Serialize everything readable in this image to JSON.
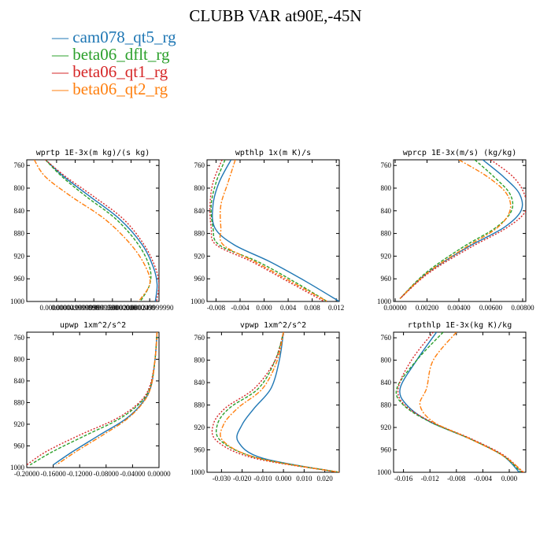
{
  "title": "CLUBB VAR at90E,-45N",
  "legend": [
    {
      "name": "cam078_qt5_rg",
      "color": "#1f77b4"
    },
    {
      "name": "beta06_dflt_rg",
      "color": "#2ca02c"
    },
    {
      "name": "beta06_qt1_rg",
      "color": "#d62728"
    },
    {
      "name": "beta06_qt2_rg",
      "color": "#ff7f0e"
    }
  ],
  "chart_data": [
    {
      "type": "line",
      "title": "wprtp  1E-3x(m kg)/(s kg)",
      "xlim": [
        -8e-05,
        0.000275
      ],
      "ylim": [
        1000,
        750
      ],
      "xticks": [
        0.0,
        5e-05,
        0.0001,
        0.00015,
        0.0002,
        0.00025
      ],
      "xtick_labels": [
        "0.00000000",
        "0.000049999990",
        "0.000099999990",
        "0.000150000000",
        "0.000200000000",
        "0.000249999990"
      ],
      "yticks": [
        760,
        800,
        840,
        880,
        920,
        960,
        1000
      ],
      "ytick_labels": [
        "760",
        "800",
        "840",
        "880",
        "920",
        "960",
        "1000"
      ],
      "series": [
        {
          "name": "cam078_qt5_rg",
          "x": [
            -3e-05,
            2e-05,
            9e-05,
            0.00017,
            0.00023,
            0.00026,
            0.00027,
            0.000265
          ],
          "y": [
            750,
            780,
            815,
            855,
            900,
            940,
            970,
            1000
          ]
        },
        {
          "name": "beta06_dflt_rg",
          "x": [
            -3e-05,
            1.5e-05,
            8e-05,
            0.00016,
            0.00022,
            0.00025,
            0.00025,
            0.000225
          ],
          "y": [
            750,
            780,
            815,
            855,
            900,
            940,
            970,
            1000
          ]
        },
        {
          "name": "beta06_qt1_rg",
          "x": [
            -3e-05,
            2.5e-05,
            0.0001,
            0.00018,
            0.000235,
            0.000265,
            0.000275,
            0.000268
          ],
          "y": [
            750,
            780,
            815,
            855,
            900,
            940,
            970,
            1000
          ]
        },
        {
          "name": "beta06_qt2_rg",
          "x": [
            -6e-05,
            -3e-05,
            4e-05,
            0.00013,
            0.0002,
            0.00024,
            0.00025,
            0.00022
          ],
          "y": [
            750,
            780,
            815,
            855,
            900,
            940,
            970,
            1000
          ]
        }
      ]
    },
    {
      "type": "line",
      "title": "wpthlp  1x(m K)/s",
      "xlim": [
        -0.0095,
        0.0125
      ],
      "ylim": [
        1000,
        750
      ],
      "xticks": [
        -0.008,
        -0.004,
        0.0,
        0.004,
        0.008,
        0.012
      ],
      "xtick_labels": [
        "-0.008",
        "-0.004",
        "0.000",
        "0.004",
        "0.008",
        "0.012"
      ],
      "yticks": [
        760,
        800,
        840,
        880,
        920,
        960,
        1000
      ],
      "ytick_labels": [
        "760",
        "800",
        "840",
        "880",
        "920",
        "960",
        "1000"
      ],
      "series": [
        {
          "name": "cam078_qt5_rg",
          "x": [
            -0.0055,
            -0.0075,
            -0.0085,
            -0.0082,
            -0.005,
            0.001,
            0.007,
            0.0125
          ],
          "y": [
            750,
            790,
            830,
            870,
            900,
            930,
            965,
            1000
          ]
        },
        {
          "name": "beta06_dflt_rg",
          "x": [
            -0.0065,
            -0.008,
            -0.0088,
            -0.0085,
            -0.0075,
            -0.001,
            0.005,
            0.0105
          ],
          "y": [
            750,
            790,
            830,
            870,
            900,
            930,
            965,
            1000
          ]
        },
        {
          "name": "beta06_qt1_rg",
          "x": [
            -0.007,
            -0.0085,
            -0.009,
            -0.0088,
            -0.008,
            -0.002,
            0.004,
            0.01
          ],
          "y": [
            750,
            790,
            830,
            870,
            900,
            930,
            965,
            1000
          ]
        },
        {
          "name": "beta06_qt2_rg",
          "x": [
            -0.0048,
            -0.006,
            -0.0072,
            -0.0072,
            -0.0068,
            -0.0015,
            0.0045,
            0.0105
          ],
          "y": [
            750,
            790,
            830,
            870,
            900,
            930,
            965,
            1000
          ]
        }
      ]
    },
    {
      "type": "line",
      "title": "wprcp  1E-3x(m/s) (kg/kg)",
      "xlim": [
        -0.0001,
        0.0082
      ],
      "ylim": [
        1000,
        750
      ],
      "xticks": [
        0.0,
        0.002,
        0.004,
        0.006,
        0.008
      ],
      "xtick_labels": [
        "0.00000",
        "0.00200",
        "0.00400",
        "0.00600",
        "0.00800"
      ],
      "yticks": [
        760,
        800,
        840,
        880,
        920,
        960,
        1000
      ],
      "ytick_labels": [
        "760",
        "800",
        "840",
        "880",
        "920",
        "960",
        "1000"
      ],
      "series": [
        {
          "name": "cam078_qt5_rg",
          "x": [
            0.0055,
            0.0068,
            0.0078,
            0.0079,
            0.0068,
            0.0045,
            0.002,
            0.0003
          ],
          "y": [
            750,
            780,
            810,
            840,
            870,
            905,
            950,
            995
          ]
        },
        {
          "name": "beta06_dflt_rg",
          "x": [
            0.005,
            0.0062,
            0.0072,
            0.0073,
            0.0063,
            0.0042,
            0.0019,
            0.0003
          ],
          "y": [
            750,
            780,
            810,
            840,
            870,
            905,
            950,
            995
          ]
        },
        {
          "name": "beta06_qt1_rg",
          "x": [
            0.006,
            0.0074,
            0.0081,
            0.0082,
            0.007,
            0.0047,
            0.0021,
            0.0003
          ],
          "y": [
            750,
            780,
            810,
            840,
            870,
            905,
            950,
            995
          ]
        },
        {
          "name": "beta06_qt2_rg",
          "x": [
            0.004,
            0.0058,
            0.007,
            0.0072,
            0.0064,
            0.0044,
            0.002,
            0.0003
          ],
          "y": [
            750,
            780,
            810,
            840,
            870,
            905,
            950,
            995
          ]
        }
      ]
    },
    {
      "type": "line",
      "title": "upwp   1xm^2/s^2",
      "xlim": [
        -0.2,
        0.0
      ],
      "ylim": [
        1000,
        750
      ],
      "xticks": [
        -0.2,
        -0.16,
        -0.12,
        -0.08,
        -0.04,
        0.0
      ],
      "xtick_labels": [
        "-0.20000",
        "-0.16000",
        "-0.12000",
        "-0.08000",
        "-0.04000",
        "0.00000"
      ],
      "yticks": [
        760,
        800,
        840,
        880,
        920,
        960,
        1000
      ],
      "ytick_labels": [
        "760",
        "800",
        "840",
        "880",
        "920",
        "960",
        "1000"
      ],
      "series": [
        {
          "name": "cam078_qt5_rg",
          "x": [
            -0.003,
            -0.006,
            -0.012,
            -0.025,
            -0.05,
            -0.09,
            -0.13,
            -0.16
          ],
          "y": [
            750,
            800,
            850,
            880,
            910,
            940,
            970,
            995
          ]
        },
        {
          "name": "beta06_dflt_rg",
          "x": [
            -0.003,
            -0.006,
            -0.013,
            -0.028,
            -0.06,
            -0.11,
            -0.16,
            -0.195
          ],
          "y": [
            750,
            800,
            850,
            880,
            910,
            940,
            970,
            995
          ]
        },
        {
          "name": "beta06_qt1_rg",
          "x": [
            -0.003,
            -0.006,
            -0.014,
            -0.03,
            -0.065,
            -0.12,
            -0.17,
            -0.2
          ],
          "y": [
            750,
            800,
            850,
            880,
            910,
            940,
            970,
            995
          ]
        },
        {
          "name": "beta06_qt2_rg",
          "x": [
            -0.003,
            -0.006,
            -0.012,
            -0.024,
            -0.048,
            -0.085,
            -0.125,
            -0.155
          ],
          "y": [
            750,
            800,
            850,
            880,
            910,
            940,
            970,
            995
          ]
        }
      ]
    },
    {
      "type": "line",
      "title": "vpwp   1xm^2/s^2",
      "xlim": [
        -0.037,
        0.027
      ],
      "ylim": [
        1000,
        750
      ],
      "xticks": [
        -0.03,
        -0.02,
        -0.01,
        0.0,
        0.01,
        0.02
      ],
      "xtick_labels": [
        "-0.030",
        "-0.020",
        "-0.010",
        "0.000",
        "0.010",
        "0.020"
      ],
      "yticks": [
        760,
        800,
        840,
        880,
        920,
        960,
        1000
      ],
      "ytick_labels": [
        "760",
        "800",
        "840",
        "880",
        "920",
        "960",
        "1000"
      ],
      "series": [
        {
          "name": "cam078_qt5_rg",
          "x": [
            0.0,
            -0.002,
            -0.006,
            -0.014,
            -0.02,
            -0.022,
            -0.01,
            0.027
          ],
          "y": [
            750,
            800,
            850,
            885,
            915,
            945,
            975,
            1000
          ]
        },
        {
          "name": "beta06_dflt_rg",
          "x": [
            0.0,
            -0.004,
            -0.012,
            -0.026,
            -0.032,
            -0.03,
            -0.012,
            0.027
          ],
          "y": [
            750,
            800,
            850,
            885,
            915,
            945,
            975,
            1000
          ]
        },
        {
          "name": "beta06_qt1_rg",
          "x": [
            0.0,
            -0.004,
            -0.014,
            -0.028,
            -0.034,
            -0.032,
            -0.014,
            0.027
          ],
          "y": [
            750,
            800,
            850,
            885,
            915,
            945,
            975,
            1000
          ]
        },
        {
          "name": "beta06_qt2_rg",
          "x": [
            0.0,
            -0.003,
            -0.01,
            -0.022,
            -0.029,
            -0.029,
            -0.012,
            0.027
          ],
          "y": [
            750,
            800,
            850,
            885,
            915,
            945,
            975,
            1000
          ]
        }
      ]
    },
    {
      "type": "line",
      "title": "rtpthlp  1E-3x(kg K)/kg",
      "xlim": [
        -0.0175,
        0.0025
      ],
      "ylim": [
        1000,
        750
      ],
      "xticks": [
        -0.016,
        -0.012,
        -0.008,
        -0.004,
        0.0
      ],
      "xtick_labels": [
        "-0.016",
        "-0.012",
        "-0.008",
        "-0.004",
        "0.000"
      ],
      "yticks": [
        760,
        800,
        840,
        880,
        920,
        960,
        1000
      ],
      "ytick_labels": [
        "760",
        "800",
        "840",
        "880",
        "920",
        "960",
        "1000"
      ],
      "series": [
        {
          "name": "cam078_qt5_rg",
          "x": [
            -0.011,
            -0.014,
            -0.0165,
            -0.0155,
            -0.012,
            -0.006,
            -0.001,
            0.0015
          ],
          "y": [
            750,
            800,
            850,
            880,
            910,
            940,
            970,
            1000
          ]
        },
        {
          "name": "beta06_dflt_rg",
          "x": [
            -0.01,
            -0.014,
            -0.017,
            -0.016,
            -0.012,
            -0.006,
            -0.001,
            0.0018
          ],
          "y": [
            750,
            800,
            850,
            880,
            910,
            940,
            970,
            1000
          ]
        },
        {
          "name": "beta06_qt1_rg",
          "x": [
            -0.0115,
            -0.0148,
            -0.0168,
            -0.0158,
            -0.0118,
            -0.0058,
            -0.0008,
            0.002
          ],
          "y": [
            750,
            800,
            850,
            880,
            910,
            940,
            970,
            1000
          ]
        },
        {
          "name": "beta06_qt2_rg",
          "x": [
            -0.008,
            -0.0115,
            -0.0125,
            -0.0135,
            -0.0115,
            -0.006,
            -0.001,
            0.0022
          ],
          "y": [
            750,
            800,
            850,
            880,
            910,
            940,
            970,
            1000
          ]
        }
      ]
    }
  ]
}
